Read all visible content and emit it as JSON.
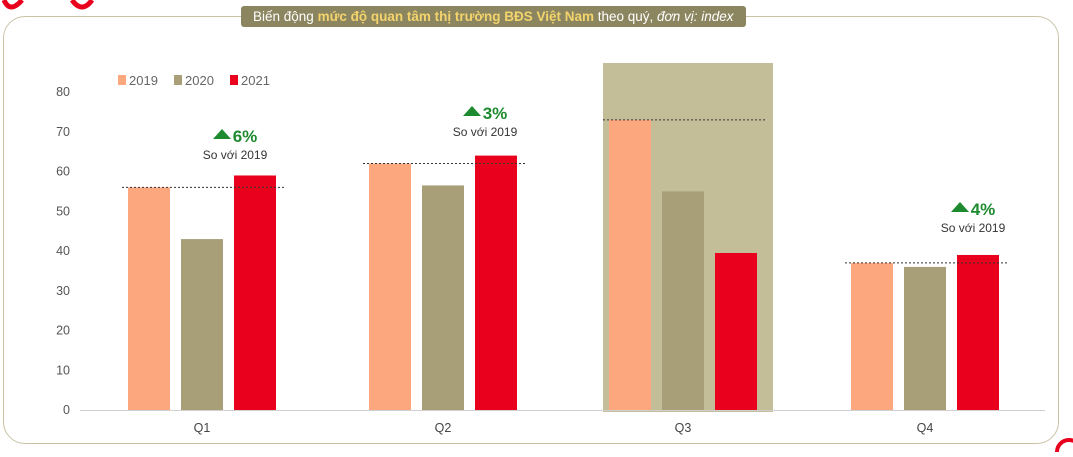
{
  "title": {
    "part1": "Biến động ",
    "part2": "mức độ quan tâm thị trường BĐS Việt Nam",
    "part3": " theo quý, ",
    "part4": "đơn vị: index"
  },
  "colors": {
    "s2019": "#fda77e",
    "s2020": "#a89f78",
    "s2021": "#e8001c",
    "highlight": "#c3bd98",
    "accent_green": "#1e8a2f"
  },
  "annotations": [
    {
      "pct": "6%",
      "sub": "So với 2019"
    },
    {
      "pct": "3%",
      "sub": "So với 2019"
    },
    {
      "pct": "4%",
      "sub": "So với 2019"
    }
  ],
  "chart_data": {
    "type": "bar",
    "categories": [
      "Q1",
      "Q2",
      "Q3",
      "Q4"
    ],
    "series": [
      {
        "name": "2019",
        "values": [
          56,
          62,
          73,
          37
        ]
      },
      {
        "name": "2020",
        "values": [
          43,
          56.5,
          55,
          36
        ]
      },
      {
        "name": "2021",
        "values": [
          59,
          64,
          39.5,
          39
        ]
      }
    ],
    "ylim": [
      0,
      80
    ],
    "yticks": [
      0,
      10,
      20,
      30,
      40,
      50,
      60,
      70,
      80
    ],
    "highlight_category": "Q3",
    "legend_position": "top-left",
    "grid": false
  }
}
